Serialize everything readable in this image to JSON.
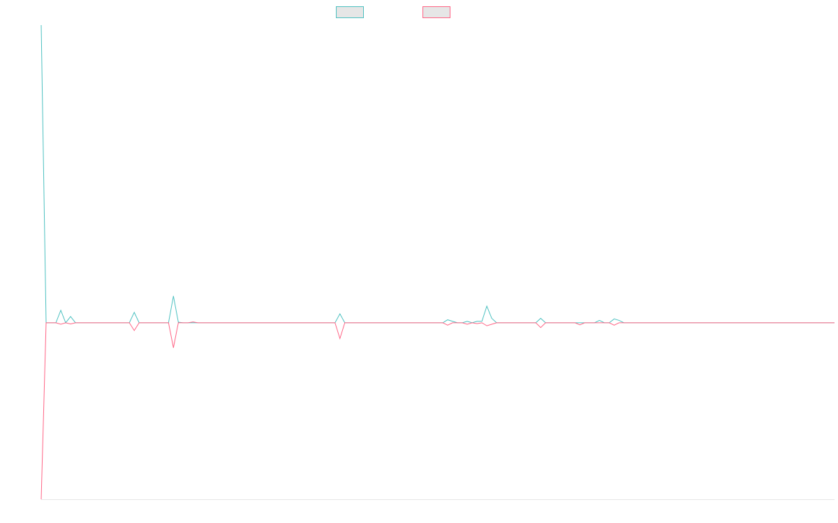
{
  "chart_data": {
    "type": "line",
    "categories": [
      null,
      null,
      null,
      null,
      null,
      null,
      null,
      null,
      null,
      null,
      null,
      null,
      null,
      null,
      null,
      null,
      null,
      null,
      null,
      null,
      null,
      null,
      null,
      null,
      null,
      null,
      null,
      null,
      null,
      null,
      null,
      null,
      null,
      null,
      null,
      null,
      null,
      null,
      null,
      null,
      null,
      null,
      null,
      null,
      null,
      null,
      null,
      null,
      null,
      null,
      null,
      null,
      null,
      null,
      null,
      null,
      null,
      null,
      null,
      null,
      null,
      null,
      null,
      null,
      null,
      null,
      null,
      null,
      null,
      null,
      null,
      null,
      null,
      null,
      null,
      null,
      null,
      null,
      null,
      null,
      null,
      null,
      null,
      null,
      null,
      null,
      null,
      null,
      null,
      null,
      null,
      null,
      null,
      null,
      null,
      null,
      null,
      null,
      null,
      null,
      null,
      null,
      null,
      null,
      null,
      null,
      null,
      null,
      null,
      null,
      null,
      null,
      null,
      null,
      null,
      null,
      null,
      null,
      null,
      null,
      null,
      null,
      null,
      null,
      null,
      null,
      null,
      null,
      null,
      null,
      null,
      null,
      null,
      null,
      null,
      null,
      null,
      null,
      null,
      null,
      null,
      null,
      null,
      null,
      null,
      null,
      null,
      null,
      null,
      null,
      null,
      null,
      null,
      null,
      null,
      null,
      null,
      null,
      null,
      null,
      null,
      null,
      null
    ],
    "series": [
      {
        "color": "#4bc0c0",
        "values": [
          100,
          0,
          0,
          0,
          4.2,
          0,
          2.1,
          0,
          0,
          0,
          0,
          0,
          0,
          0,
          0,
          0,
          0,
          0,
          0,
          3.5,
          0,
          0,
          0,
          0,
          0,
          0,
          0,
          9,
          0.2,
          0,
          0,
          0,
          0,
          0,
          0,
          0,
          0,
          0,
          0,
          0,
          0,
          0,
          0,
          0,
          0,
          0,
          0,
          0,
          0,
          0,
          0,
          0,
          0,
          0,
          0,
          0,
          0,
          0,
          0,
          0,
          0,
          3,
          0,
          0,
          0,
          0,
          0,
          0,
          0,
          0,
          0,
          0,
          0,
          0,
          0,
          0,
          0,
          0,
          0,
          0,
          0,
          0,
          0,
          1,
          0.5,
          0,
          0,
          0.5,
          0,
          0.5,
          0.5,
          5.6,
          1.5,
          0,
          0,
          0,
          0,
          0,
          0,
          0,
          0,
          0,
          1.5,
          0,
          0,
          0,
          0,
          0,
          0,
          0,
          0,
          0,
          0,
          0,
          0.8,
          0,
          0,
          1.3,
          0.8,
          0,
          0,
          0,
          0,
          0,
          0,
          0,
          0,
          0,
          0,
          0,
          0,
          0,
          0,
          0,
          0,
          0,
          0,
          0,
          0,
          0,
          0,
          0,
          0,
          0,
          0,
          0,
          0,
          0,
          0,
          0,
          0,
          0,
          0,
          0,
          0,
          0,
          0,
          0,
          0,
          0,
          0,
          0,
          0
        ]
      },
      {
        "color": "#ff6384",
        "values": [
          -59.3,
          0,
          0,
          0,
          -0.5,
          0,
          -0.4,
          0,
          0,
          0,
          0,
          0,
          0,
          0,
          0,
          0,
          0,
          0,
          0,
          -2.6,
          0,
          0,
          0,
          0,
          0,
          0,
          0,
          -8.4,
          0,
          0,
          0,
          0.3,
          0,
          0,
          0,
          0,
          0,
          0,
          0,
          0,
          0,
          0,
          0,
          0,
          0,
          0,
          0,
          0,
          0,
          0,
          0,
          0,
          0,
          0,
          0,
          0,
          0,
          0,
          0,
          0,
          0,
          -5.3,
          0,
          0,
          0,
          0,
          0,
          0,
          0,
          0,
          0,
          0,
          0,
          0,
          0,
          0,
          0,
          0,
          0,
          0,
          0,
          0,
          0,
          -0.8,
          0,
          0,
          0,
          -0.5,
          0,
          -0.3,
          0,
          -1,
          -0.5,
          0,
          0,
          0,
          0,
          0,
          0,
          0,
          0,
          0,
          -1.6,
          0,
          0,
          0,
          0,
          0,
          0,
          0,
          -0.7,
          0,
          0,
          0,
          0,
          0,
          0,
          -0.8,
          0,
          0,
          0,
          0,
          0,
          0,
          0,
          0,
          0,
          0,
          0,
          0,
          0,
          0,
          0,
          0,
          0,
          0,
          0,
          0,
          0,
          0,
          0,
          0,
          0,
          0,
          0,
          0,
          0,
          0,
          0,
          0,
          0,
          0,
          0,
          0,
          0,
          0,
          0,
          0,
          0,
          0,
          0,
          0,
          0
        ]
      }
    ],
    "ylim": [
      -59.3,
      100
    ]
  }
}
